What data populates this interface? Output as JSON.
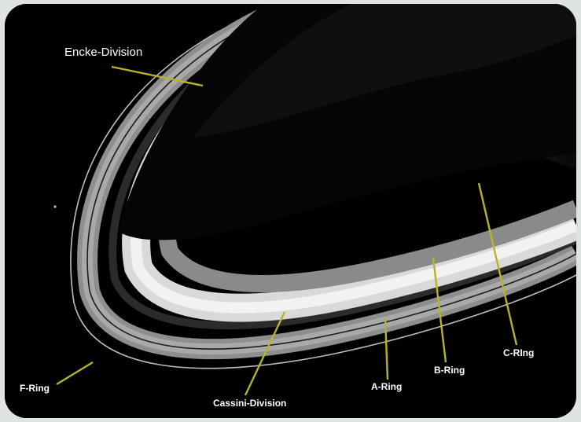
{
  "labels": {
    "encke": "Encke-Division",
    "f_ring": "F-Ring",
    "cassini": "Cassini-Division",
    "a_ring": "A-Ring",
    "b_ring": "B-Ring",
    "c_ring": "C-RIng"
  },
  "colors": {
    "pointer": "#b7b42a",
    "label_text": "#ffffff",
    "space": "#000000",
    "frame": "#dfe3e1"
  }
}
